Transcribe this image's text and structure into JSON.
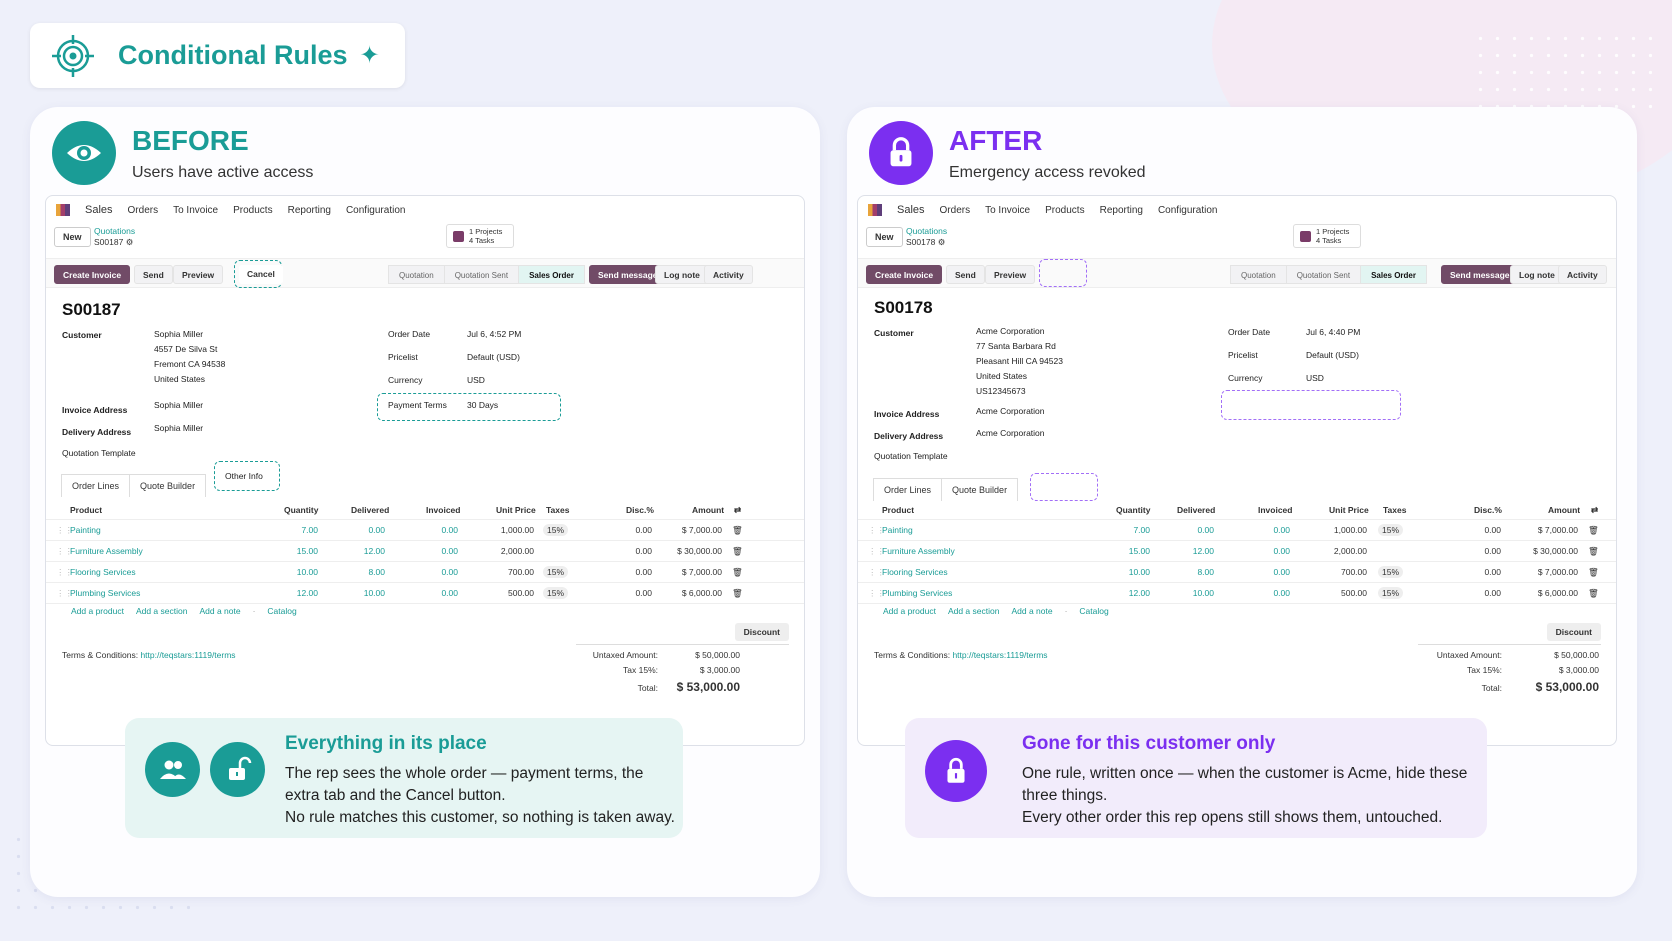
{
  "title": "Conditional Rules",
  "before": {
    "heading": "BEFORE",
    "subheading": "Users have active access",
    "info_title": "Everything in its place",
    "info_lines": [
      "The rep sees the whole order — payment terms, the extra tab and the Cancel button.",
      "No rule matches this customer, so nothing is taken away."
    ],
    "order": {
      "ref": "S00187",
      "customer_lines": [
        "Sophia Miller",
        "4557 De Silva St",
        "Fremont CA 94538",
        "United States"
      ],
      "invoice_address": "Sophia Miller",
      "delivery_address": "Sophia Miller",
      "order_date": "Jul 6, 4:52 PM",
      "payment_terms_label": "Payment Terms",
      "payment_terms": "30 Days",
      "cancel_label": "Cancel",
      "other_info_tab": "Other Info"
    }
  },
  "after": {
    "heading": "AFTER",
    "subheading": "Emergency access revoked",
    "info_title": "Gone for this customer only",
    "info_lines": [
      "One rule, written once — when the customer is Acme, hide these three things.",
      "Every other order this rep opens still shows them, untouched."
    ],
    "order": {
      "ref": "S00178",
      "customer_lines": [
        "Acme Corporation",
        "77 Santa Barbara Rd",
        "Pleasant Hill CA 94523",
        "United States",
        "US12345673"
      ],
      "invoice_address": "Acme Corporation",
      "delivery_address": "Acme Corporation",
      "order_date": "Jul 6, 4:40 PM"
    }
  },
  "odoo": {
    "menu": [
      "Sales",
      "Orders",
      "To Invoice",
      "Products",
      "Reporting",
      "Configuration"
    ],
    "new_button": "New",
    "breadcrumb": "Quotations",
    "projects": "1 Projects",
    "tasks": "4 Tasks",
    "actions": {
      "create_invoice": "Create Invoice",
      "send": "Send",
      "preview": "Preview"
    },
    "statuses": [
      "Quotation",
      "Quotation Sent",
      "Sales Order"
    ],
    "chatter": {
      "send_message": "Send message",
      "log_note": "Log note",
      "activity": "Activity"
    },
    "labels": {
      "customer": "Customer",
      "invoice_address": "Invoice Address",
      "delivery_address": "Delivery Address",
      "quotation_template": "Quotation Template",
      "order_date": "Order Date",
      "pricelist": "Pricelist",
      "currency": "Currency"
    },
    "pricelist": "Default (USD)",
    "currency": "USD",
    "tabs": [
      "Order Lines",
      "Quote Builder"
    ],
    "columns": [
      "Product",
      "Quantity",
      "Delivered",
      "Invoiced",
      "Unit Price",
      "Taxes",
      "Disc.%",
      "Amount"
    ],
    "rows": [
      {
        "product": "Painting",
        "qty": "7.00",
        "delivered": "0.00",
        "invoiced": "0.00",
        "price": "1,000.00",
        "tax": "15%",
        "disc": "0.00",
        "amount": "$ 7,000.00"
      },
      {
        "product": "Furniture Assembly",
        "qty": "15.00",
        "delivered": "12.00",
        "invoiced": "0.00",
        "price": "2,000.00",
        "tax": "",
        "disc": "0.00",
        "amount": "$ 30,000.00"
      },
      {
        "product": "Flooring Services",
        "qty": "10.00",
        "delivered": "8.00",
        "invoiced": "0.00",
        "price": "700.00",
        "tax": "15%",
        "disc": "0.00",
        "amount": "$ 7,000.00"
      },
      {
        "product": "Plumbing Services",
        "qty": "12.00",
        "delivered": "10.00",
        "invoiced": "0.00",
        "price": "500.00",
        "tax": "15%",
        "disc": "0.00",
        "amount": "$ 6,000.00"
      }
    ],
    "add_links": [
      "Add a product",
      "Add a section",
      "Add a note",
      "·",
      "Catalog"
    ],
    "discount": "Discount",
    "terms_label": "Terms & Conditions:",
    "terms_link": "http://teqstars:1119/terms",
    "untaxed_label": "Untaxed Amount:",
    "untaxed": "$ 50,000.00",
    "tax_label": "Tax 15%:",
    "tax": "$ 3,000.00",
    "total_label": "Total:",
    "total": "$ 53,000.00"
  }
}
